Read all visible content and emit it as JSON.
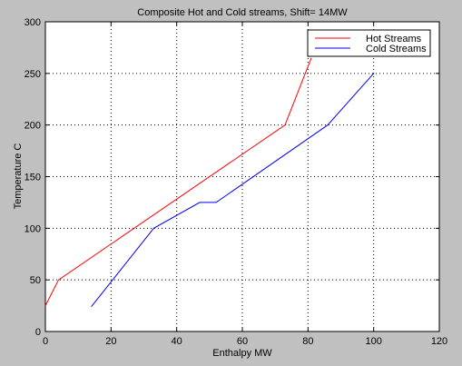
{
  "chart_data": {
    "type": "line",
    "title": "Composite Hot and Cold streams, Shift= 14MW",
    "xlabel": "Enthalpy MW",
    "ylabel": "Temperature C",
    "xlim": [
      0,
      120
    ],
    "ylim": [
      0,
      300
    ],
    "xticks": [
      0,
      20,
      40,
      60,
      80,
      100,
      120
    ],
    "yticks": [
      0,
      50,
      100,
      150,
      200,
      250,
      300
    ],
    "grid": true,
    "legend_position": "top-right",
    "series": [
      {
        "name": "Hot Streams",
        "color": "#ff0000",
        "x": [
          0,
          4,
          73,
          81
        ],
        "y": [
          25,
          50,
          200,
          265
        ]
      },
      {
        "name": "Cold Streams",
        "color": "#0000ff",
        "x": [
          14,
          33,
          47,
          52,
          86,
          100
        ],
        "y": [
          24,
          100,
          125,
          125,
          200,
          250
        ]
      }
    ]
  }
}
